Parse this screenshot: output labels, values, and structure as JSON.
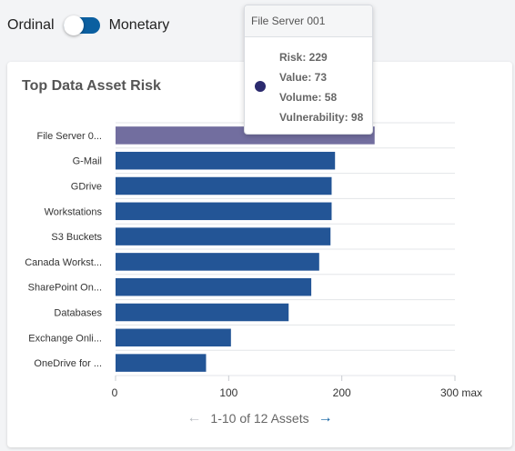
{
  "toggle": {
    "left_label": "Ordinal",
    "right_label": "Monetary",
    "state": "Monetary"
  },
  "card": {
    "title": "Top Data Asset Risk"
  },
  "pager": {
    "text": "1-10 of 12 Assets",
    "prev_icon": "arrow-left-icon",
    "next_icon": "arrow-right-icon"
  },
  "tooltip": {
    "title": "File Server 001",
    "rows": [
      "Risk: 229",
      "Value: 73",
      "Volume: 58",
      "Vulnerability: 98"
    ],
    "dot_color": "#2b2a6e"
  },
  "chart_data": {
    "type": "bar",
    "orientation": "horizontal",
    "categories": [
      "File Server 0...",
      "G-Mail",
      "GDrive",
      "Workstations",
      "S3 Buckets",
      "Canada Workst...",
      "SharePoint On...",
      "Databases",
      "Exchange Onli...",
      "OneDrive for ..."
    ],
    "values": [
      229,
      194,
      191,
      191,
      190,
      180,
      173,
      153,
      102,
      80
    ],
    "highlighted_index": 0,
    "bar_color": "#235596",
    "highlight_color": "#726e9f",
    "xlim": [
      0,
      300
    ],
    "xticks": [
      "0",
      "100",
      "200",
      "300 max"
    ],
    "grid": true
  }
}
